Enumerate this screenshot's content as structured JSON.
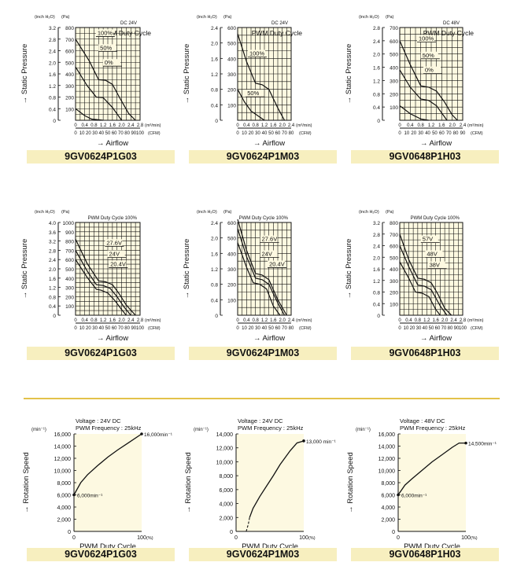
{
  "colors": {
    "plot_bg": "#fdf9e1",
    "grid": "#111111",
    "curve": "#111111",
    "model_bar": "#f7efbf",
    "divider": "#e3c24a"
  },
  "chart_data": [
    {
      "id": "pq1",
      "type": "line",
      "model": "9GV0624P1G03",
      "unit_inch": "(inch H₂O)",
      "unit_pa": "(Pa)",
      "header": "DC 24V",
      "legend_title": "PWM Duty Cycle",
      "ylabel": "→ Static Pressure",
      "xlabel": "→ Airflow",
      "x_unit_top": "(m³/min)",
      "x_unit_bottom": "(CFM)",
      "xlim": [
        0,
        2.8
      ],
      "ylim": [
        0,
        800
      ],
      "pa_ticks": [
        "800",
        "700",
        "600",
        "500",
        "400",
        "300",
        "200",
        "100"
      ],
      "inch_ticks": [
        "3.2",
        "2.8",
        "2.4",
        "2.0",
        "1.6",
        "1.2",
        "0.8",
        "0.4",
        "0"
      ],
      "x_top_ticks": [
        "0",
        "0.4",
        "0.8",
        "1.2",
        "1.6",
        "2.0",
        "2.4",
        "2.8"
      ],
      "x_bottom_ticks": [
        "0",
        "10",
        "20",
        "30",
        "40",
        "50",
        "60",
        "70",
        "80",
        "90",
        "100"
      ],
      "series": [
        {
          "name": "100%",
          "x": [
            0,
            0.6,
            1.0,
            1.3,
            1.6,
            1.9,
            2.3,
            2.6
          ],
          "y": [
            700,
            510,
            350,
            345,
            310,
            200,
            60,
            0
          ]
        },
        {
          "name": "50%",
          "x": [
            0,
            0.5,
            0.9,
            1.2,
            1.6,
            2.0
          ],
          "y": [
            460,
            300,
            200,
            195,
            110,
            0
          ]
        },
        {
          "name": "0%",
          "x": [
            0,
            0.4,
            0.7,
            1.0,
            1.2
          ],
          "y": [
            100,
            40,
            10,
            5,
            0
          ]
        }
      ]
    },
    {
      "id": "pq2",
      "type": "line",
      "model": "9GV0624P1M03",
      "unit_inch": "(inch H₂O)",
      "unit_pa": "(Pa)",
      "header": "DC 24V",
      "legend_title": "PWM Duty Cycle",
      "ylabel": "→ Static Pressure",
      "xlabel": "→ Airflow",
      "x_unit_top": "(m³/min)",
      "x_unit_bottom": "(CFM)",
      "xlim": [
        0,
        2.4
      ],
      "ylim": [
        0,
        600
      ],
      "pa_ticks": [
        "600",
        "500",
        "400",
        "300",
        "200",
        "100"
      ],
      "inch_ticks": [
        "2.4",
        "2.0",
        "1.6",
        "1.2",
        "0.8",
        "0.4",
        "0"
      ],
      "x_top_ticks": [
        "0",
        "0.4",
        "0.8",
        "1.2",
        "1.6",
        "2.0",
        "2.4"
      ],
      "x_bottom_ticks": [
        "0",
        "10",
        "20",
        "30",
        "40",
        "50",
        "60",
        "70",
        "80"
      ],
      "series": [
        {
          "name": "100%",
          "x": [
            0,
            0.4,
            0.8,
            1.1,
            1.4,
            1.8,
            2.1
          ],
          "y": [
            560,
            380,
            240,
            230,
            200,
            80,
            0
          ]
        },
        {
          "name": "50%",
          "x": [
            0,
            0.3,
            0.6,
            0.9,
            1.2
          ],
          "y": [
            200,
            120,
            60,
            30,
            0
          ]
        }
      ]
    },
    {
      "id": "pq3",
      "type": "line",
      "model": "9GV0648P1H03",
      "unit_inch": "(inch H₂O)",
      "unit_pa": "(Pa)",
      "header": "DC 48V",
      "legend_title": "PWM Duty Cycle",
      "ylabel": "→ Static Pressure",
      "xlabel": "→ Airflow",
      "x_unit_top": "(m³/min)",
      "x_unit_bottom": "(CFM)",
      "xlim": [
        0,
        2.4
      ],
      "ylim": [
        0,
        700
      ],
      "pa_ticks": [
        "700",
        "600",
        "500",
        "400",
        "300",
        "200",
        "100"
      ],
      "inch_ticks": [
        "2.8",
        "2.4",
        "2.0",
        "1.6",
        "1.2",
        "0.8",
        "0.4",
        "0"
      ],
      "x_top_ticks": [
        "0",
        "0.4",
        "0.8",
        "1.2",
        "1.6",
        "2.0",
        "2.4"
      ],
      "x_bottom_ticks": [
        "0",
        "10",
        "20",
        "30",
        "40",
        "50",
        "60",
        "70",
        "80",
        "90"
      ],
      "series": [
        {
          "name": "100%",
          "x": [
            0,
            0.4,
            0.8,
            1.1,
            1.4,
            1.7,
            2.0,
            2.2
          ],
          "y": [
            600,
            420,
            260,
            250,
            220,
            140,
            40,
            0
          ]
        },
        {
          "name": "50%",
          "x": [
            0,
            0.4,
            0.8,
            1.1,
            1.4,
            1.8
          ],
          "y": [
            380,
            250,
            160,
            150,
            110,
            0
          ]
        },
        {
          "name": "0%",
          "x": [
            0,
            0.4,
            0.8,
            1.1
          ],
          "y": [
            110,
            50,
            10,
            0
          ]
        }
      ]
    },
    {
      "id": "pq4",
      "type": "line",
      "model": "9GV0624P1G03",
      "unit_inch": "(inch H₂O)",
      "unit_pa": "(Pa)",
      "header": "PWM Duty Cycle 100%",
      "ylabel": "→ Static Pressure",
      "xlabel": "→ Airflow",
      "x_unit_top": "(m³/min)",
      "x_unit_bottom": "(CFM)",
      "xlim": [
        0,
        2.8
      ],
      "ylim": [
        0,
        1000
      ],
      "pa_ticks": [
        "1000",
        "900",
        "800",
        "700",
        "600",
        "500",
        "400",
        "300",
        "200",
        "100"
      ],
      "inch_ticks": [
        "4.0",
        "3.6",
        "3.2",
        "2.8",
        "2.4",
        "2.0",
        "1.6",
        "1.2",
        "0.8",
        "0.4",
        "0"
      ],
      "x_top_ticks": [
        "0",
        "0.4",
        "0.8",
        "1.2",
        "1.6",
        "2.0",
        "2.4",
        "2.8"
      ],
      "x_bottom_ticks": [
        "0",
        "10",
        "20",
        "30",
        "40",
        "50",
        "60",
        "70",
        "80",
        "90",
        "100"
      ],
      "series": [
        {
          "name": "27.6V",
          "x": [
            0,
            0.5,
            1.0,
            1.3,
            1.6,
            1.9,
            2.2,
            2.6
          ],
          "y": [
            820,
            560,
            370,
            360,
            330,
            230,
            110,
            0
          ]
        },
        {
          "name": "24V",
          "x": [
            0,
            0.5,
            0.9,
            1.2,
            1.5,
            1.8,
            2.1,
            2.4
          ],
          "y": [
            700,
            480,
            330,
            320,
            290,
            200,
            90,
            0
          ]
        },
        {
          "name": "20.4V",
          "x": [
            0,
            0.5,
            0.9,
            1.1,
            1.4,
            1.7,
            2.0,
            2.2
          ],
          "y": [
            600,
            410,
            280,
            270,
            240,
            160,
            60,
            0
          ]
        }
      ]
    },
    {
      "id": "pq5",
      "type": "line",
      "model": "9GV0624P1M03",
      "unit_inch": "(inch H₂O)",
      "unit_pa": "(Pa)",
      "header": "PWM Duty Cycle 100%",
      "ylabel": "→ Static Pressure",
      "xlabel": "→ Airflow",
      "x_unit_top": "(m³/min)",
      "x_unit_bottom": "(CFM)",
      "xlim": [
        0,
        2.4
      ],
      "ylim": [
        0,
        600
      ],
      "pa_ticks": [
        "600",
        "500",
        "400",
        "300",
        "200",
        "100"
      ],
      "inch_ticks": [
        "2.4",
        "2.0",
        "1.6",
        "1.2",
        "0.8",
        "0.4",
        "0"
      ],
      "x_top_ticks": [
        "0",
        "0.4",
        "0.8",
        "1.2",
        "1.6",
        "2.0",
        "2.4"
      ],
      "x_bottom_ticks": [
        "0",
        "10",
        "20",
        "30",
        "40",
        "50",
        "60",
        "70",
        "80"
      ],
      "series": [
        {
          "name": "27.6V",
          "x": [
            0,
            0.4,
            0.8,
            1.1,
            1.4,
            1.8,
            2.2
          ],
          "y": [
            620,
            420,
            270,
            260,
            230,
            100,
            0
          ]
        },
        {
          "name": "24V",
          "x": [
            0,
            0.4,
            0.8,
            1.1,
            1.4,
            1.8,
            2.1
          ],
          "y": [
            560,
            380,
            240,
            230,
            200,
            80,
            0
          ]
        },
        {
          "name": "20.4V",
          "x": [
            0,
            0.4,
            0.7,
            1.0,
            1.3,
            1.6,
            1.9
          ],
          "y": [
            470,
            310,
            210,
            200,
            170,
            60,
            0
          ]
        }
      ]
    },
    {
      "id": "pq6",
      "type": "line",
      "model": "9GV0648P1H03",
      "unit_inch": "(inch H₂O)",
      "unit_pa": "(Pa)",
      "header": "PWM Duty Cycle 100%",
      "ylabel": "→ Static Pressure",
      "xlabel": "→ Airflow",
      "x_unit_top": "(m³/min)",
      "x_unit_bottom": "(CFM)",
      "xlim": [
        0,
        2.8
      ],
      "ylim": [
        0,
        800
      ],
      "pa_ticks": [
        "800",
        "700",
        "600",
        "500",
        "400",
        "300",
        "200",
        "100"
      ],
      "inch_ticks": [
        "3.2",
        "2.8",
        "2.4",
        "2.0",
        "1.6",
        "1.2",
        "0.8",
        "0.4",
        "0"
      ],
      "x_top_ticks": [
        "0",
        "0.4",
        "0.8",
        "1.2",
        "1.6",
        "2.0",
        "2.4",
        "2.8"
      ],
      "x_bottom_ticks": [
        "0",
        "10",
        "20",
        "30",
        "40",
        "50",
        "60",
        "70",
        "80",
        "90",
        "100"
      ],
      "series": [
        {
          "name": "57V",
          "x": [
            0,
            0.4,
            0.8,
            1.1,
            1.4,
            1.7,
            2.0,
            2.3
          ],
          "y": [
            700,
            480,
            320,
            310,
            280,
            180,
            60,
            0
          ]
        },
        {
          "name": "48V",
          "x": [
            0,
            0.4,
            0.8,
            1.1,
            1.4,
            1.8,
            2.1
          ],
          "y": [
            600,
            420,
            260,
            250,
            220,
            80,
            0
          ]
        },
        {
          "name": "38V",
          "x": [
            0,
            0.4,
            0.7,
            1.0,
            1.3,
            1.6,
            1.8
          ],
          "y": [
            460,
            320,
            200,
            190,
            160,
            50,
            0
          ]
        }
      ]
    },
    {
      "id": "rs1",
      "type": "line",
      "model": "9GV0624P1G03",
      "voltage": "Voltage : 24V DC",
      "freq": "PWM Frequency : 25kHz",
      "unit": "(min⁻¹)",
      "ylabel": "→ Rotation Speed",
      "xlabel": "PWM Duty Cycle",
      "x_unit": "(%)",
      "xlim": [
        0,
        100
      ],
      "ylim": [
        0,
        16000
      ],
      "y_ticks": [
        "16,000",
        "14,000",
        "12,000",
        "10,000",
        "8,000",
        "6,000",
        "4,000",
        "2,000",
        "0"
      ],
      "x_ticks": [
        "0",
        "100"
      ],
      "series": [
        {
          "x": [
            0,
            10,
            20,
            35,
            50,
            65,
            80,
            100
          ],
          "y": [
            6000,
            8000,
            9300,
            10800,
            12200,
            13400,
            14500,
            16000
          ]
        }
      ],
      "annotations": [
        {
          "text": "16,000min⁻¹",
          "x": 100,
          "y": 16000
        },
        {
          "text": "6,000min⁻¹",
          "x": 0,
          "y": 6000
        }
      ]
    },
    {
      "id": "rs2",
      "type": "line",
      "model": "9GV0624P1M03",
      "voltage": "Voltage : 24V DC",
      "freq": "PWM Frequency : 25kHz",
      "unit": "(min⁻¹)",
      "ylabel": "→ Rotation Speed",
      "xlabel": "PWM Duty Cycle",
      "x_unit": "(%)",
      "xlim": [
        0,
        100
      ],
      "ylim": [
        0,
        14000
      ],
      "y_ticks": [
        "14,000",
        "12,000",
        "10,000",
        "8,000",
        "6,000",
        "4,000",
        "2,000",
        "0"
      ],
      "x_ticks": [
        "0",
        "100"
      ],
      "series": [
        {
          "x": [
            20,
            25,
            35,
            45,
            55,
            65,
            80,
            90,
            100
          ],
          "y": [
            2000,
            3300,
            5000,
            6500,
            8000,
            9600,
            11600,
            12700,
            13000
          ]
        }
      ],
      "dashed": {
        "x": [
          15,
          18,
          20
        ],
        "y": [
          0,
          1000,
          2000
        ]
      },
      "annotations": [
        {
          "text": "13,000 min⁻¹",
          "x": 100,
          "y": 13000
        }
      ]
    },
    {
      "id": "rs3",
      "type": "line",
      "model": "9GV0648P1H03",
      "voltage": "Voltage : 48V DC",
      "freq": "PWM Frequency : 25kHz",
      "unit": "(min⁻¹)",
      "ylabel": "→ Rotation Speed",
      "xlabel": "PWM Duty Cycle",
      "x_unit": "(%)",
      "xlim": [
        0,
        100
      ],
      "ylim": [
        0,
        16000
      ],
      "y_ticks": [
        "16,000",
        "14,000",
        "12,000",
        "10,000",
        "8,000",
        "6,000",
        "4,000",
        "2,000",
        "0"
      ],
      "x_ticks": [
        "0",
        "100"
      ],
      "series": [
        {
          "x": [
            0,
            10,
            20,
            35,
            50,
            65,
            80,
            90,
            100
          ],
          "y": [
            6000,
            7600,
            8600,
            10000,
            11400,
            12600,
            13800,
            14500,
            14500
          ]
        }
      ],
      "annotations": [
        {
          "text": "14,500min⁻¹",
          "x": 100,
          "y": 14500
        },
        {
          "text": "6,000min⁻¹",
          "x": 0,
          "y": 6000
        }
      ]
    }
  ]
}
